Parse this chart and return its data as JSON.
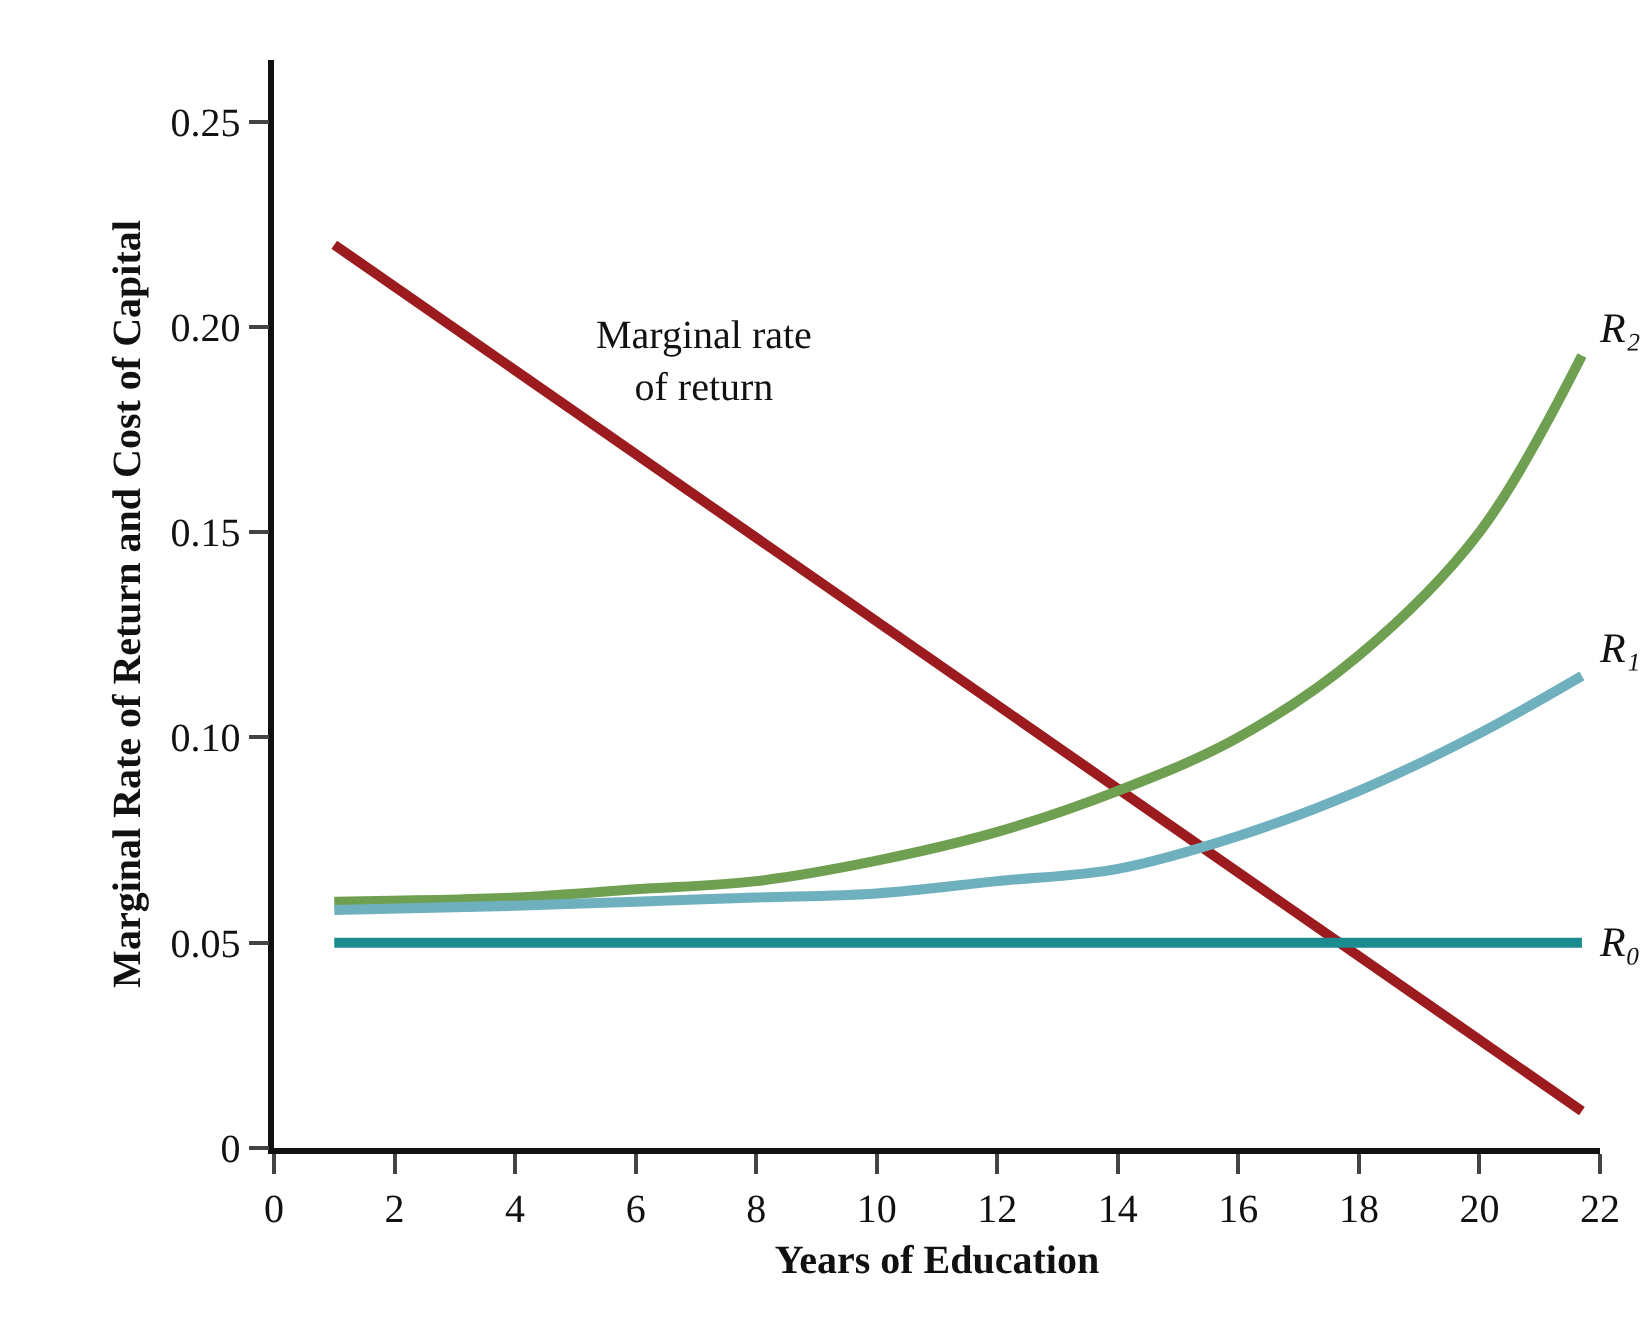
{
  "chart_data": {
    "type": "line",
    "xlabel": "Years of Education",
    "ylabel": "Marginal Rate of Return and Cost of Capital",
    "series": [
      {
        "name": "Marginal rate of return",
        "color": "#9b1b1e",
        "x": [
          1,
          21.7
        ],
        "values": [
          0.22,
          0.009
        ]
      },
      {
        "name": "R₂",
        "color": "#6f9f50",
        "x": [
          1,
          4,
          6,
          8,
          10,
          12,
          14,
          16,
          18,
          20,
          21.7
        ],
        "values": [
          0.06,
          0.061,
          0.063,
          0.065,
          0.07,
          0.077,
          0.087,
          0.1,
          0.12,
          0.15,
          0.193
        ]
      },
      {
        "name": "R₁",
        "color": "#6fb0bf",
        "x": [
          1,
          4,
          6,
          8,
          10,
          12,
          14,
          16,
          18,
          20,
          21.7
        ],
        "values": [
          0.058,
          0.059,
          0.06,
          0.061,
          0.062,
          0.065,
          0.068,
          0.076,
          0.087,
          0.101,
          0.115
        ]
      },
      {
        "name": "R₀",
        "color": "#1a8c8f",
        "x": [
          1,
          21.7
        ],
        "values": [
          0.05,
          0.05
        ]
      }
    ],
    "xlim": [
      0,
      22
    ],
    "xticks": [
      0,
      2,
      4,
      6,
      8,
      10,
      12,
      14,
      16,
      18,
      20,
      22
    ],
    "ylim": [
      0,
      0.265
    ],
    "yticks": [
      0,
      0.05,
      {
        "value": 0.1,
        "label": "0.10"
      },
      0.15,
      {
        "value": 0.2,
        "label": "0.20"
      },
      0.25
    ],
    "grid": false,
    "legend": false,
    "marker": "none",
    "line_style": "solid"
  }
}
